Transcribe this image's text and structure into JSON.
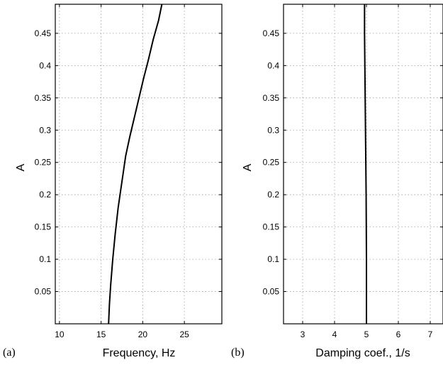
{
  "chart_data": [
    {
      "type": "line",
      "panel_label": "(a)",
      "xlabel": "Frequency, Hz",
      "ylabel": "A",
      "xlim": [
        9.5,
        29.5
      ],
      "ylim": [
        0,
        0.495
      ],
      "xticks": [
        10,
        15,
        20,
        25
      ],
      "yticks": [
        0.05,
        0.1,
        0.15,
        0.2,
        0.25,
        0.3,
        0.35,
        0.4,
        0.45
      ],
      "grid": true,
      "series": [
        {
          "x": [
            15.9,
            16.0,
            16.15,
            16.4,
            16.7,
            17.05,
            17.5,
            17.95,
            18.45,
            19.0,
            19.55,
            20.1,
            20.7,
            21.25,
            21.9,
            22.3
          ],
          "y": [
            0.0,
            0.03,
            0.06,
            0.1,
            0.14,
            0.18,
            0.22,
            0.26,
            0.29,
            0.32,
            0.35,
            0.38,
            0.41,
            0.44,
            0.47,
            0.495
          ]
        }
      ]
    },
    {
      "type": "line",
      "panel_label": "(b)",
      "xlabel": "Damping coef., 1/s",
      "ylabel": "A",
      "xlim": [
        2.4,
        7.4
      ],
      "ylim": [
        0,
        0.495
      ],
      "xticks": [
        3,
        4,
        5,
        6,
        7
      ],
      "yticks": [
        0.05,
        0.1,
        0.15,
        0.2,
        0.25,
        0.3,
        0.35,
        0.4,
        0.45
      ],
      "grid": true,
      "series": [
        {
          "x": [
            5.0,
            5.0,
            4.99,
            4.98,
            4.97,
            4.96,
            4.95,
            4.94,
            4.94
          ],
          "y": [
            0.0,
            0.1,
            0.2,
            0.25,
            0.3,
            0.35,
            0.4,
            0.45,
            0.495
          ]
        }
      ]
    }
  ]
}
